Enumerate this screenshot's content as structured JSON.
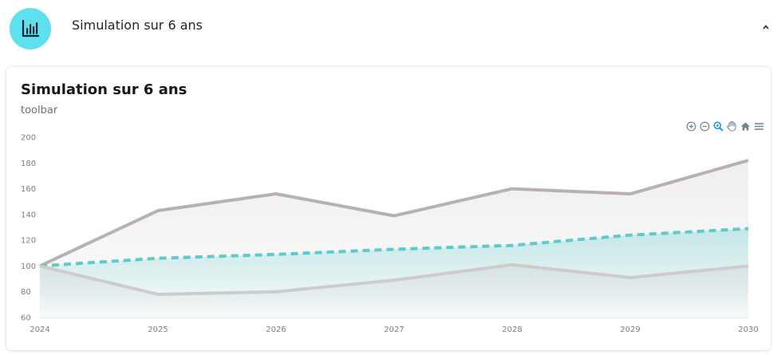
{
  "header": {
    "title": "Simulation sur 6 ans",
    "badge_icon": "bar-chart-icon",
    "toggle_icon": "chevron-up-icon"
  },
  "card": {
    "title": "Simulation sur 6 ans",
    "subtitle": "toolbar"
  },
  "toolbar": {
    "icons": [
      "zoom-in-icon",
      "zoom-out-icon",
      "zoom-select-icon",
      "pan-hand-icon",
      "reset-home-icon",
      "menu-icon"
    ]
  },
  "colors": {
    "accent": "#5fe0ef",
    "upper_series": "#b8b0b2",
    "median_series": "#5ecbcb",
    "lower_series": "#cfcbcc",
    "toolbar_icon": "#6e8192",
    "toolbar_active": "#008ffb"
  },
  "chart_data": {
    "type": "area",
    "x": [
      "2024",
      "2025",
      "2026",
      "2027",
      "2028",
      "2029",
      "2030"
    ],
    "ylim": [
      60,
      200
    ],
    "yticks": [
      60,
      80,
      100,
      120,
      140,
      160,
      180,
      200
    ],
    "grid": false,
    "series": [
      {
        "values": [
          100,
          143,
          156,
          139,
          160,
          156,
          182
        ],
        "style": "solid"
      },
      {
        "values": [
          100,
          106,
          109,
          113,
          116,
          124,
          129
        ],
        "style": "dashed"
      },
      {
        "values": [
          100,
          78,
          80,
          89,
          101,
          91,
          100
        ],
        "style": "solid"
      }
    ]
  }
}
